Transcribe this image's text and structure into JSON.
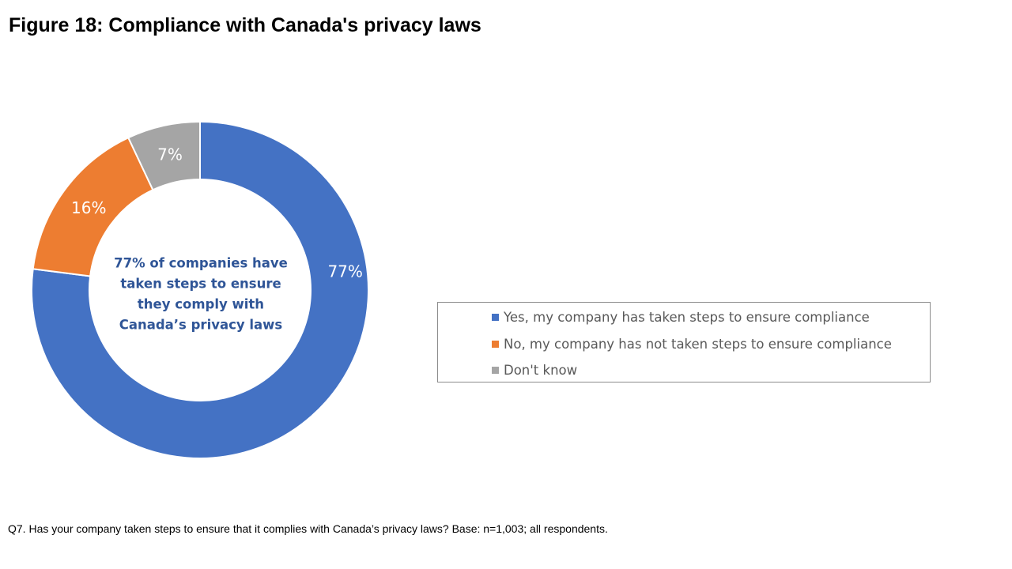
{
  "title": "Figure 18: Compliance with Canada's privacy laws",
  "chart_data": {
    "type": "pie",
    "donut": true,
    "categories": [
      "Yes, my company has  taken steps to ensure compliance",
      "No, my company has  not taken steps to ensure compliance",
      "Don't know"
    ],
    "values": [
      77,
      16,
      7
    ],
    "data_labels": [
      "77%",
      "16%",
      "7%"
    ],
    "colors": [
      "#4472c4",
      "#ed7d31",
      "#a5a5a5"
    ],
    "center_annotation": [
      "77% of companies have",
      "taken steps to ensure",
      "they comply with",
      "Canada’s  privacy laws"
    ],
    "legend_position": "right"
  },
  "footnote": "Q7. Has your company taken steps to ensure that it complies with Canada’s privacy laws? Base: n=1,003; all respondents."
}
